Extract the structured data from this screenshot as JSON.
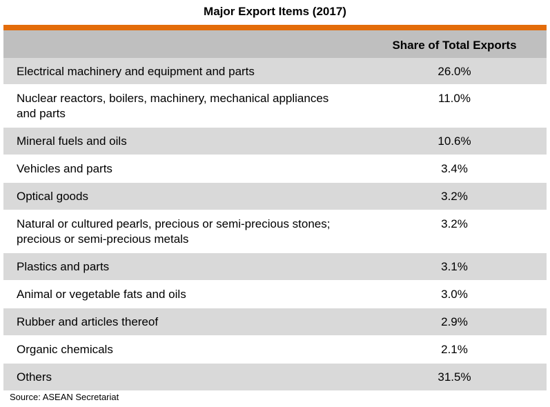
{
  "title": "Major Export Items (2017)",
  "colors": {
    "accent": "#e36c0a",
    "header_bg": "#bfbfbf",
    "shaded_row": "#d9d9d9"
  },
  "table": {
    "columns": [
      "",
      "Share of Total Exports"
    ],
    "rows": [
      {
        "item": "Electrical machinery and equipment and parts",
        "share": "26.0%"
      },
      {
        "item": "Nuclear reactors, boilers, machinery, mechanical appliances and parts",
        "share": "11.0%"
      },
      {
        "item": "Mineral fuels and oils",
        "share": "10.6%"
      },
      {
        "item": "Vehicles and parts",
        "share": "3.4%"
      },
      {
        "item": "Optical goods",
        "share": "3.2%"
      },
      {
        "item": "Natural or cultured pearls, precious or semi-precious stones; precious or semi-precious metals",
        "share": "3.2%"
      },
      {
        "item": "Plastics and parts",
        "share": "3.1%"
      },
      {
        "item": "Animal or vegetable fats and oils",
        "share": "3.0%"
      },
      {
        "item": "Rubber and articles thereof",
        "share": "2.9%"
      },
      {
        "item": "Organic chemicals",
        "share": "2.1%"
      },
      {
        "item": "Others",
        "share": "31.5%"
      }
    ]
  },
  "source": "Source: ASEAN Secretariat"
}
